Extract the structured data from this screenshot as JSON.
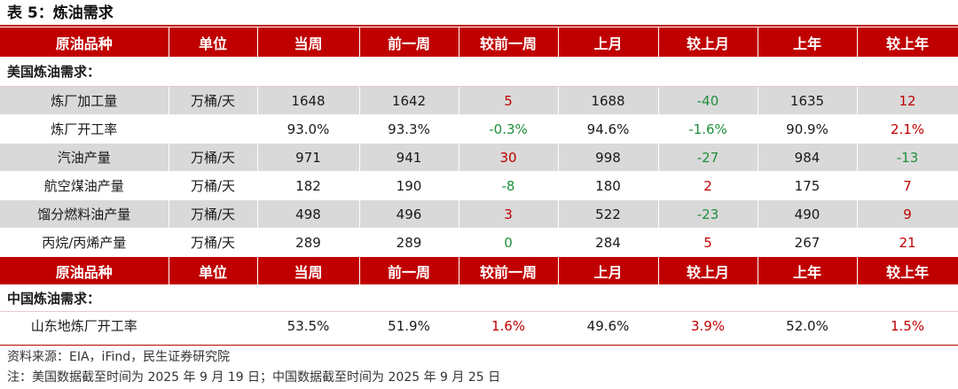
{
  "title": "表 5：炼油需求",
  "headers": [
    "原油品种",
    "单位",
    "当周",
    "前一周",
    "较前一周",
    "上月",
    "较上月",
    "上年",
    "较上年"
  ],
  "us_section": {
    "label": "美国炼油需求：",
    "rows": [
      {
        "name": "炼厂加工量",
        "unit": "万桶/天",
        "cur": "1648",
        "prev_week": "1642",
        "chg_week": "5",
        "last_month": "1688",
        "chg_month": "-40",
        "last_year": "1635",
        "chg_year": "12"
      },
      {
        "name": "炼厂开工率",
        "unit": "",
        "cur": "93.0%",
        "prev_week": "93.3%",
        "chg_week": "-0.3%",
        "last_month": "94.6%",
        "chg_month": "-1.6%",
        "last_year": "90.9%",
        "chg_year": "2.1%"
      },
      {
        "name": "汽油产量",
        "unit": "万桶/天",
        "cur": "971",
        "prev_week": "941",
        "chg_week": "30",
        "last_month": "998",
        "chg_month": "-27",
        "last_year": "984",
        "chg_year": "-13"
      },
      {
        "name": "航空煤油产量",
        "unit": "万桶/天",
        "cur": "182",
        "prev_week": "190",
        "chg_week": "-8",
        "last_month": "180",
        "chg_month": "2",
        "last_year": "175",
        "chg_year": "7"
      },
      {
        "name": "馏分燃料油产量",
        "unit": "万桶/天",
        "cur": "498",
        "prev_week": "496",
        "chg_week": "3",
        "last_month": "522",
        "chg_month": "-23",
        "last_year": "490",
        "chg_year": "9"
      },
      {
        "name": "丙烷/丙烯产量",
        "unit": "万桶/天",
        "cur": "289",
        "prev_week": "289",
        "chg_week": "0",
        "last_month": "284",
        "chg_month": "5",
        "last_year": "267",
        "chg_year": "21"
      }
    ]
  },
  "cn_section": {
    "label": "中国炼油需求：",
    "rows": [
      {
        "name": "山东地炼厂开工率",
        "unit": "",
        "cur": "53.5%",
        "prev_week": "51.9%",
        "chg_week": "1.6%",
        "last_month": "49.6%",
        "chg_month": "3.9%",
        "last_year": "52.0%",
        "chg_year": "1.5%"
      }
    ]
  },
  "notes": {
    "source": "资料来源：EIA，iFind，民生证券研究院",
    "remark": "注：美国数据截至时间为 2025 年 9 月 19 日；中国数据截至时间为 2025 年 9 月 25 日"
  },
  "colors": {
    "header_bg": "#c00000",
    "shade_row": "#d9d9d9",
    "positive_change": "#c00000",
    "negative_change": "#1e8f3a"
  }
}
